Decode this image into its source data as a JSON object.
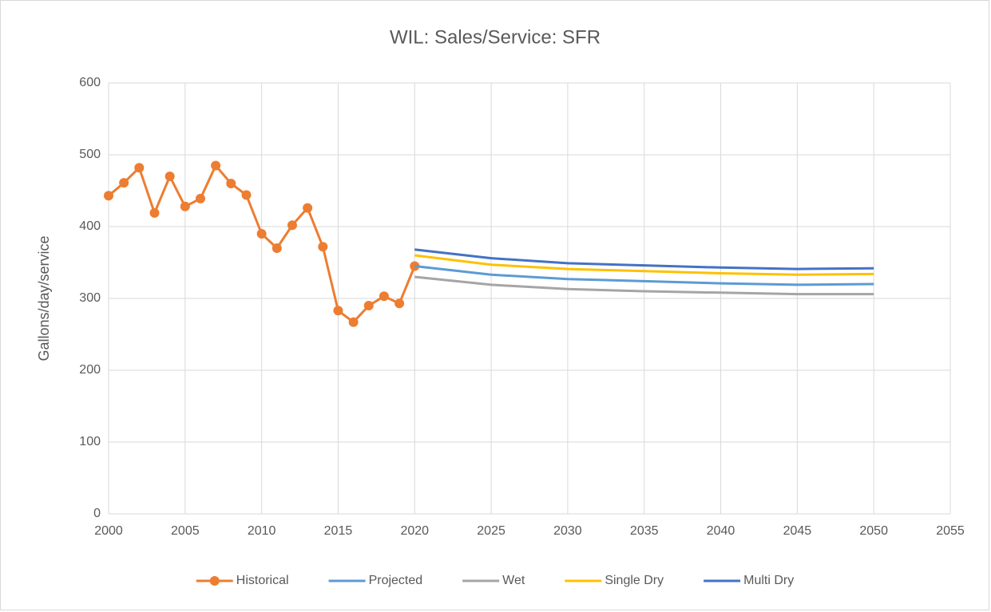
{
  "chart_data": {
    "type": "line",
    "title": "WIL: Sales/Service: SFR",
    "y_label": "Gallons/day/service",
    "x": [
      2000,
      2001,
      2002,
      2003,
      2004,
      2005,
      2006,
      2007,
      2008,
      2009,
      2010,
      2011,
      2012,
      2013,
      2014,
      2015,
      2016,
      2017,
      2018,
      2019,
      2020,
      2025,
      2030,
      2035,
      2040,
      2045,
      2050
    ],
    "series": [
      {
        "name": "Historical",
        "color": "#ED7D31",
        "marker": true,
        "values": [
          443,
          461,
          482,
          419,
          470,
          428,
          439,
          485,
          460,
          444,
          390,
          370,
          402,
          426,
          372,
          283,
          267,
          290,
          303,
          293,
          345,
          null,
          null,
          null,
          null,
          null,
          null
        ]
      },
      {
        "name": "Projected",
        "color": "#5B9BD5",
        "marker": false,
        "values": [
          null,
          null,
          null,
          null,
          null,
          null,
          null,
          null,
          null,
          null,
          null,
          null,
          null,
          null,
          null,
          null,
          null,
          null,
          null,
          null,
          345,
          333,
          327,
          324,
          321,
          319,
          320
        ]
      },
      {
        "name": "Wet",
        "color": "#A5A5A5",
        "marker": false,
        "values": [
          null,
          null,
          null,
          null,
          null,
          null,
          null,
          null,
          null,
          null,
          null,
          null,
          null,
          null,
          null,
          null,
          null,
          null,
          null,
          null,
          330,
          319,
          313,
          310,
          308,
          306,
          306
        ]
      },
      {
        "name": "Single Dry",
        "color": "#FFC000",
        "marker": false,
        "values": [
          null,
          null,
          null,
          null,
          null,
          null,
          null,
          null,
          null,
          null,
          null,
          null,
          null,
          null,
          null,
          null,
          null,
          null,
          null,
          null,
          360,
          347,
          341,
          338,
          335,
          333,
          334
        ]
      },
      {
        "name": "Multi Dry",
        "color": "#4472C4",
        "marker": false,
        "values": [
          null,
          null,
          null,
          null,
          null,
          null,
          null,
          null,
          null,
          null,
          null,
          null,
          null,
          null,
          null,
          null,
          null,
          null,
          null,
          null,
          368,
          356,
          349,
          346,
          343,
          341,
          342
        ]
      }
    ],
    "xlim": [
      2000,
      2055
    ],
    "xticks": [
      2000,
      2005,
      2010,
      2015,
      2020,
      2025,
      2030,
      2035,
      2040,
      2045,
      2050,
      2055
    ],
    "ylim": [
      0,
      600
    ],
    "yticks": [
      0,
      100,
      200,
      300,
      400,
      500,
      600
    ],
    "grid": true,
    "legend": "bottom"
  }
}
